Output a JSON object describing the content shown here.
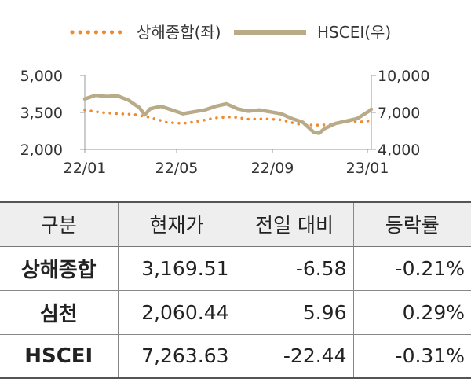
{
  "chart_data": {
    "type": "line",
    "x_ticks": [
      "22/01",
      "22/05",
      "22/09",
      "23/01"
    ],
    "x_range": [
      "2022-01-03",
      "2023-01-06"
    ],
    "y_left": {
      "ticks": [
        "2,000",
        "3,500",
        "5,000"
      ],
      "range": [
        2000,
        5000
      ]
    },
    "y_right": {
      "ticks": [
        "4,000",
        "7,000",
        "10,000"
      ],
      "range": [
        4000,
        10000
      ]
    },
    "grid": false,
    "legend_position": "top",
    "series": [
      {
        "name": "상해종합(좌)",
        "axis": "left",
        "style": "dotted",
        "color": "#ef8a2e",
        "points": [
          [
            "2022-01-03",
            3600
          ],
          [
            "2022-01-24",
            3500
          ],
          [
            "2022-02-14",
            3450
          ],
          [
            "2022-03-07",
            3420
          ],
          [
            "2022-03-28",
            3300
          ],
          [
            "2022-04-18",
            3100
          ],
          [
            "2022-05-09",
            3050
          ],
          [
            "2022-05-30",
            3150
          ],
          [
            "2022-06-20",
            3280
          ],
          [
            "2022-07-11",
            3320
          ],
          [
            "2022-08-01",
            3230
          ],
          [
            "2022-08-22",
            3240
          ],
          [
            "2022-09-12",
            3200
          ],
          [
            "2022-10-03",
            3030
          ],
          [
            "2022-10-24",
            2980
          ],
          [
            "2022-11-14",
            3000
          ],
          [
            "2022-12-05",
            3150
          ],
          [
            "2022-12-26",
            3120
          ],
          [
            "2023-01-06",
            3170
          ]
        ]
      },
      {
        "name": "HSCEI(우)",
        "axis": "right",
        "style": "solid",
        "color": "#b9aa88",
        "points": [
          [
            "2022-01-03",
            8100
          ],
          [
            "2022-01-17",
            8400
          ],
          [
            "2022-01-31",
            8300
          ],
          [
            "2022-02-14",
            8350
          ],
          [
            "2022-02-28",
            8000
          ],
          [
            "2022-03-14",
            7400
          ],
          [
            "2022-03-21",
            6800
          ],
          [
            "2022-03-28",
            7300
          ],
          [
            "2022-04-11",
            7500
          ],
          [
            "2022-04-25",
            7200
          ],
          [
            "2022-05-09",
            6900
          ],
          [
            "2022-05-23",
            7050
          ],
          [
            "2022-06-06",
            7200
          ],
          [
            "2022-06-20",
            7500
          ],
          [
            "2022-07-04",
            7700
          ],
          [
            "2022-07-18",
            7300
          ],
          [
            "2022-08-01",
            7100
          ],
          [
            "2022-08-15",
            7200
          ],
          [
            "2022-08-29",
            7050
          ],
          [
            "2022-09-12",
            6900
          ],
          [
            "2022-09-26",
            6500
          ],
          [
            "2022-10-10",
            6200
          ],
          [
            "2022-10-24",
            5400
          ],
          [
            "2022-10-31",
            5300
          ],
          [
            "2022-11-07",
            5700
          ],
          [
            "2022-11-21",
            6100
          ],
          [
            "2022-12-05",
            6300
          ],
          [
            "2022-12-19",
            6500
          ],
          [
            "2023-01-03",
            7100
          ],
          [
            "2023-01-06",
            7260
          ]
        ]
      }
    ]
  },
  "table": {
    "headers": [
      "구분",
      "현재가",
      "전일 대비",
      "등락률"
    ],
    "rows": [
      {
        "name": "상해종합",
        "price": "3,169.51",
        "change": "-6.58",
        "rate": "-0.21%"
      },
      {
        "name": "심천",
        "price": "2,060.44",
        "change": "5.96",
        "rate": "0.29%"
      },
      {
        "name": "HSCEI",
        "price": "7,263.63",
        "change": "-22.44",
        "rate": "-0.31%"
      }
    ]
  }
}
